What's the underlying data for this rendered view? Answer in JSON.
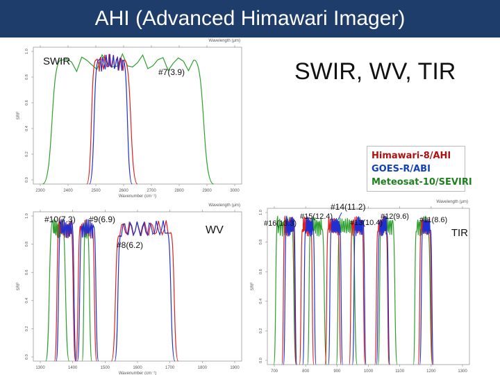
{
  "title": "AHI (Advanced Himawari Imager)",
  "subtitle": "SWIR, WV, TIR",
  "colors": {
    "green": "#2ca02c",
    "red": "#e02020",
    "blue": "#2030d0",
    "title_bg": "#1f3d6b"
  },
  "legend": [
    {
      "label": "Himawari-8/AHI",
      "color": "#b01010"
    },
    {
      "label": "GOES-R/ABI",
      "color": "#1040c0"
    },
    {
      "label": "Meteosat-10/SEVIRI",
      "color": "#208020"
    }
  ],
  "chart_data": [
    {
      "type": "line",
      "region": "SWIR",
      "xlabel": "Wavenumber (cm⁻¹)",
      "top_label": "Wavelength (μm)",
      "ylabel": "SRF",
      "x_ticks": [
        "2300",
        "2400",
        "2500",
        "2600",
        "2700",
        "2800",
        "2900",
        "3000"
      ],
      "y_ticks": [
        "0.0",
        "0.2",
        "0.4",
        "0.6",
        "0.8",
        "1.0"
      ],
      "xlim": [
        2250,
        3030
      ],
      "ylim": [
        0,
        1.05
      ],
      "band_labels": [
        "SWIR",
        "#7(3.9)"
      ],
      "series": [
        {
          "color": "green",
          "bands": [
            [
              2285,
              2355,
              2850,
              2925
            ]
          ]
        },
        {
          "color": "red",
          "bands": [
            [
              2450,
              2485,
              2590,
              2640
            ]
          ]
        },
        {
          "color": "blue",
          "bands": [
            [
              2460,
              2495,
              2585,
              2620
            ]
          ]
        }
      ]
    },
    {
      "type": "line",
      "region": "WV",
      "xlabel": "Wavenumber (cm⁻¹)",
      "top_label": "Wavelength (μm)",
      "ylabel": "SRF",
      "x_ticks": [
        "1300",
        "1400",
        "1500",
        "1600",
        "1700",
        "1800",
        "1900"
      ],
      "y_ticks": [
        "0.0",
        "0.2",
        "0.4",
        "0.6",
        "0.8",
        "1.0"
      ],
      "xlim": [
        1280,
        1920
      ],
      "ylim": [
        0,
        1.05
      ],
      "band_labels": [
        "#10(7.3)",
        "#9(6.9)",
        "#8(6.2)",
        "WV"
      ],
      "series": [
        {
          "color": "green",
          "bands": [
            [
              1318,
              1340,
              1368,
              1390
            ],
            [
              1430,
              1440,
              1445,
              1460
            ]
          ]
        },
        {
          "color": "red",
          "bands": [
            [
              1345,
              1360,
              1395,
              1410
            ],
            [
              1410,
              1425,
              1460,
              1475
            ],
            [
              1520,
              1545,
              1700,
              1725
            ]
          ]
        },
        {
          "color": "blue",
          "bands": [
            [
              1350,
              1365,
              1398,
              1412
            ],
            [
              1415,
              1430,
              1465,
              1480
            ],
            [
              1530,
              1550,
              1690,
              1715
            ]
          ]
        }
      ]
    },
    {
      "type": "line",
      "region": "TIR",
      "xlabel": "Wavenumber (cm⁻¹)",
      "top_label": "Wavelength (μm)",
      "ylabel": "SRF",
      "x_ticks": [
        "700",
        "800",
        "900",
        "1000",
        "1100",
        "1200",
        "1300"
      ],
      "y_ticks": [
        "0.0",
        "0.2",
        "0.4",
        "0.6",
        "0.8",
        "1.0"
      ],
      "xlim": [
        680,
        1310
      ],
      "ylim": [
        0,
        1.05
      ],
      "band_labels": [
        "#16(13.3)",
        "#15(12.4)",
        "#14(11.2)",
        "#13(10.4)",
        "#12(9.6)",
        "#11(8.6)",
        "TIR"
      ],
      "series": [
        {
          "color": "green",
          "bands": [
            [
              700,
              712,
              755,
              770
            ],
            [
              805,
              815,
              850,
              865
            ],
            [
              895,
              905,
              945,
              960
            ],
            [
              1025,
              1035,
              1070,
              1085
            ],
            [
              1135,
              1145,
              1180,
              1195
            ]
          ]
        },
        {
          "color": "red",
          "bands": [
            [
              725,
              735,
              760,
              770
            ],
            [
              780,
              790,
              815,
              825
            ],
            [
              860,
              870,
              900,
              910
            ],
            [
              935,
              945,
              975,
              985
            ],
            [
              1015,
              1025,
              1050,
              1060
            ],
            [
              1150,
              1160,
              1185,
              1195
            ]
          ]
        },
        {
          "color": "blue",
          "bands": [
            [
              730,
              740,
              762,
              772
            ],
            [
              790,
              800,
              822,
              832
            ],
            [
              870,
              880,
              905,
              915
            ],
            [
              945,
              955,
              978,
              988
            ],
            [
              1020,
              1030,
              1052,
              1062
            ],
            [
              1155,
              1165,
              1188,
              1198
            ]
          ]
        }
      ]
    }
  ]
}
